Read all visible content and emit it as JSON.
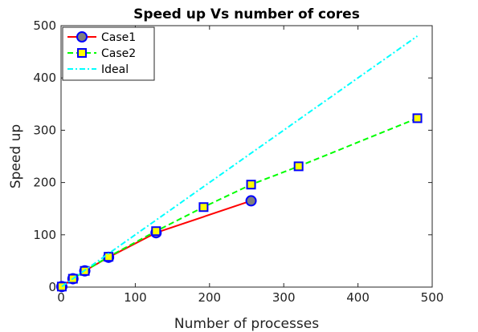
{
  "chart_data": {
    "type": "line",
    "title": "Speed up Vs number of cores",
    "xlabel": "Number of processes",
    "ylabel": "Speed up",
    "xlim": [
      0,
      500
    ],
    "ylim": [
      0,
      500
    ],
    "xticks": [
      "0",
      "100",
      "200",
      "300",
      "400",
      "500"
    ],
    "yticks": [
      "0",
      "100",
      "200",
      "300",
      "400",
      "500"
    ],
    "grid": false,
    "legend_position": "top-left",
    "series": [
      {
        "name": "Case1",
        "color": "#ff0000",
        "line_style": "solid",
        "marker": "circle",
        "marker_fill": "#7f7f7f",
        "marker_edge": "#0000ff",
        "x": [
          1,
          16,
          32,
          64,
          128,
          256
        ],
        "y": [
          1,
          16,
          31,
          57,
          104,
          165
        ]
      },
      {
        "name": "Case2",
        "color": "#00ff00",
        "line_style": "dashed",
        "marker": "square",
        "marker_fill": "#ffff00",
        "marker_edge": "#0000ff",
        "x": [
          1,
          16,
          32,
          64,
          128,
          192,
          256,
          320,
          480
        ],
        "y": [
          1,
          16,
          31,
          58,
          107,
          153,
          196,
          231,
          323
        ]
      },
      {
        "name": "Ideal",
        "color": "#00ffff",
        "line_style": "dashdot",
        "marker": "none",
        "x": [
          1,
          480
        ],
        "y": [
          1,
          480
        ]
      }
    ]
  }
}
